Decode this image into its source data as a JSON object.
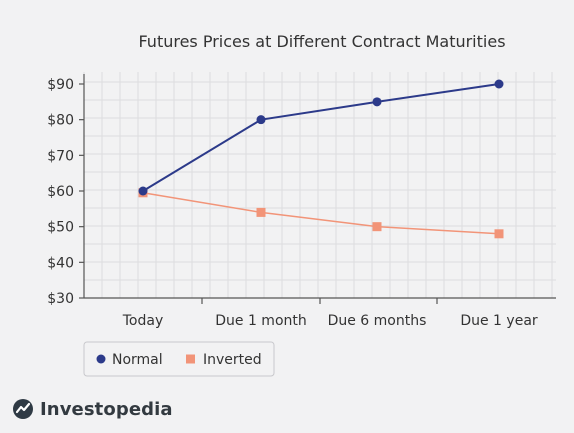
{
  "chart_data": {
    "type": "line",
    "title": "Futures Prices at Different Contract Maturities",
    "xlabel": "",
    "ylabel": "",
    "categories": [
      "Today",
      "Due 1 month",
      "Due 6 months",
      "Due 1 year"
    ],
    "ylim": [
      30,
      90
    ],
    "yticks": [
      30,
      40,
      50,
      60,
      70,
      80,
      90
    ],
    "ytick_labels": [
      "$30",
      "$40",
      "$50",
      "$60",
      "$70",
      "$80",
      "$90"
    ],
    "grid": true,
    "legend_position": "bottom-left",
    "series": [
      {
        "name": "Normal",
        "values": [
          60,
          80,
          85,
          90
        ],
        "color": "#2c3a8a",
        "marker": "circle"
      },
      {
        "name": "Inverted",
        "values": [
          59.5,
          54,
          50,
          48
        ],
        "color": "#f29478",
        "marker": "square"
      }
    ]
  },
  "brand": {
    "name": "Investopedia",
    "icon": "investopedia-logo-icon"
  },
  "colors": {
    "background": "#f2f2f3",
    "axis": "#555555",
    "grid": "#dcdcdf",
    "legend_border": "#c8c8cc"
  }
}
